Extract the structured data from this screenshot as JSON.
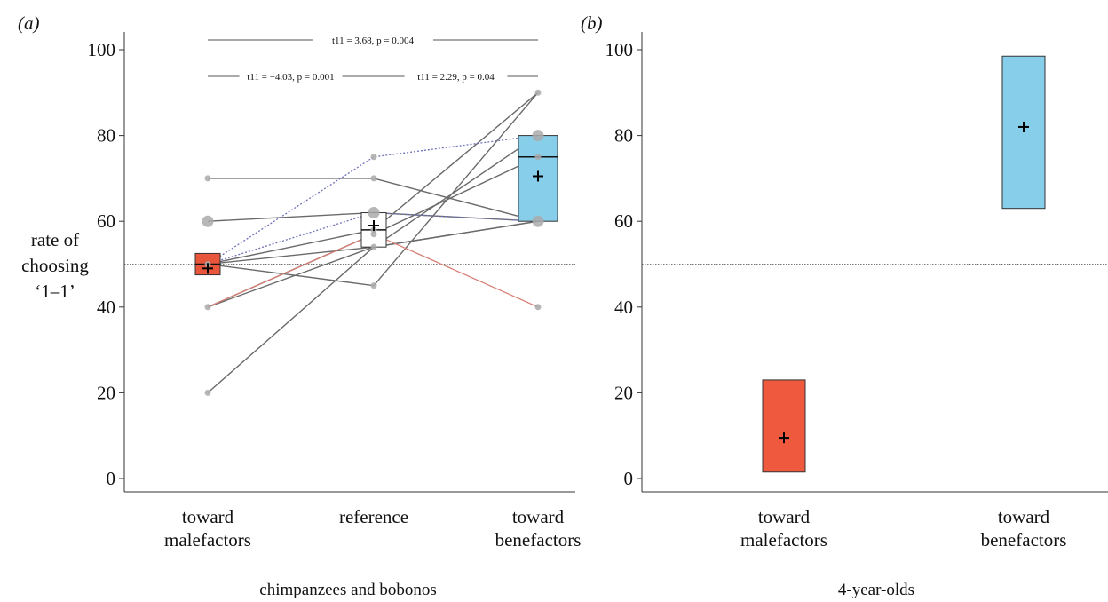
{
  "figure": {
    "y_label_lines": [
      "rate of",
      "choosing",
      "‘1–1’"
    ]
  },
  "chart_data": [
    {
      "type": "box",
      "panel_label": "(a)",
      "xlabel": "chimpanzees and bobonos",
      "ylabel": "rate of choosing ‘1–1’",
      "ylim": [
        0,
        100
      ],
      "yticks": [
        0,
        20,
        40,
        60,
        80,
        100
      ],
      "reference_line": 50,
      "categories": [
        {
          "label_lines": [
            "toward",
            "malefactors"
          ]
        },
        {
          "label_lines": [
            "reference"
          ]
        },
        {
          "label_lines": [
            "toward",
            "benefactors"
          ]
        }
      ],
      "boxes": [
        {
          "q1": 47.5,
          "median": 50,
          "q3": 52.5,
          "mean": 49,
          "color": "#e8553a"
        },
        {
          "q1": 54,
          "median": 58,
          "q3": 62,
          "mean": 59,
          "color": "#ffffff"
        },
        {
          "q1": 60,
          "median": 75,
          "q3": 80,
          "mean": 70.5,
          "color": "#87ceea"
        }
      ],
      "individuals": [
        {
          "values": [
            70,
            70,
            60
          ],
          "style": "solid-gray"
        },
        {
          "values": [
            60,
            62,
            60
          ],
          "style": "solid-gray"
        },
        {
          "values": [
            50,
            58,
            90
          ],
          "style": "solid-gray"
        },
        {
          "values": [
            50,
            54,
            60
          ],
          "style": "solid-gray"
        },
        {
          "values": [
            40,
            54,
            80
          ],
          "style": "solid-gray"
        },
        {
          "values": [
            40,
            57,
            75
          ],
          "style": "solid-gray"
        },
        {
          "values": [
            20,
            54,
            60
          ],
          "style": "solid-gray"
        },
        {
          "values": [
            50,
            45,
            90
          ],
          "style": "solid-gray"
        },
        {
          "values": [
            50,
            75,
            80
          ],
          "style": "dotted-blue"
        },
        {
          "values": [
            50,
            62,
            60
          ],
          "style": "dotted-blue"
        },
        {
          "values": [
            40,
            57,
            40
          ],
          "style": "solid-red"
        }
      ],
      "comparisons": [
        {
          "text": "t11 = 3.68, p = 0.004",
          "from": 0,
          "to": 2
        },
        {
          "text": "t11 = −4.03, p = 0.001",
          "from": 0,
          "to": 1
        },
        {
          "text": "t11 = 2.29, p = 0.04",
          "from": 1,
          "to": 2
        }
      ]
    },
    {
      "type": "box",
      "panel_label": "(b)",
      "xlabel": "4-year-olds",
      "ylim": [
        0,
        100
      ],
      "yticks": [
        0,
        20,
        40,
        60,
        80,
        100
      ],
      "reference_line": 50,
      "categories": [
        {
          "label_lines": [
            "toward",
            "malefactors"
          ]
        },
        {
          "label_lines": [
            "toward",
            "benefactors"
          ]
        }
      ],
      "boxes": [
        {
          "low": 1.5,
          "high": 23,
          "mean": 9.5,
          "color": "#ef5a3e"
        },
        {
          "low": 63,
          "high": 98.5,
          "mean": 82,
          "color": "#87ceea"
        }
      ]
    }
  ]
}
